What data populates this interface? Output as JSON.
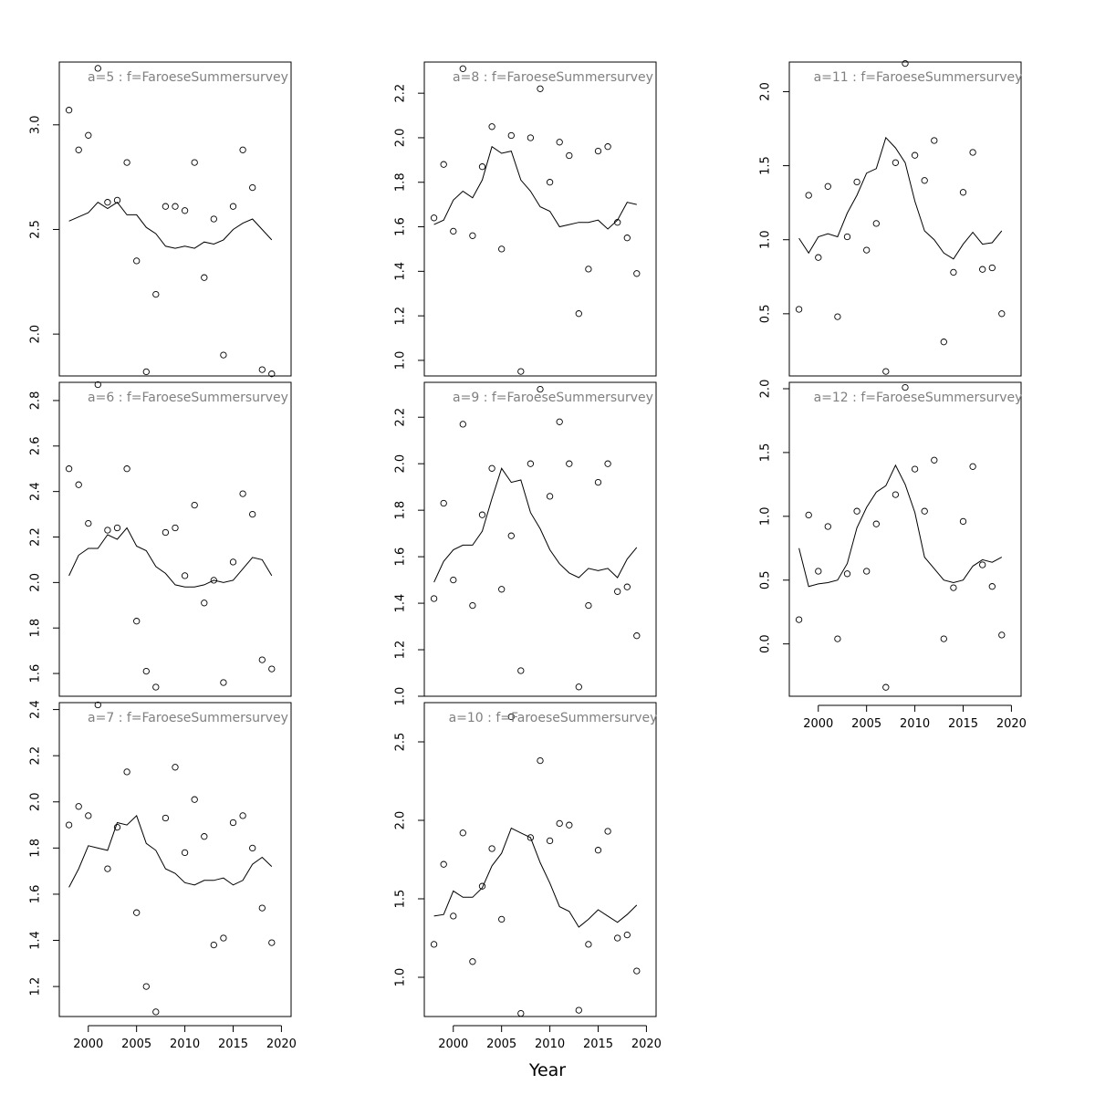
{
  "figure": {
    "xlabel": "Year"
  },
  "chart_data": [
    {
      "type": "scatter",
      "title": "a=5  :  f=FaroeseSummersurvey",
      "xlim": [
        1997,
        2021
      ],
      "ylim": [
        1.8,
        3.3
      ],
      "yticks": [
        2.0,
        2.5,
        3.0
      ],
      "ytick_labels": [
        "2.0",
        "2.5",
        "3.0"
      ],
      "show_xaxis": false,
      "x": [
        1998,
        1999,
        2000,
        2001,
        2002,
        2003,
        2004,
        2005,
        2006,
        2007,
        2008,
        2009,
        2010,
        2011,
        2012,
        2013,
        2014,
        2015,
        2016,
        2017,
        2018,
        2019
      ],
      "observed": [
        3.07,
        2.88,
        2.95,
        3.27,
        2.63,
        2.64,
        2.82,
        2.35,
        1.82,
        2.19,
        2.61,
        2.61,
        2.59,
        2.82,
        2.27,
        2.55,
        1.9,
        2.61,
        2.88,
        2.7,
        1.83,
        1.81
      ],
      "fitted": [
        2.54,
        2.56,
        2.58,
        2.63,
        2.6,
        2.63,
        2.57,
        2.57,
        2.51,
        2.48,
        2.42,
        2.41,
        2.42,
        2.41,
        2.44,
        2.43,
        2.45,
        2.5,
        2.53,
        2.55,
        2.5,
        2.45
      ]
    },
    {
      "type": "scatter",
      "title": "a=6  :  f=FaroeseSummersurvey",
      "xlim": [
        1997,
        2021
      ],
      "ylim": [
        1.5,
        2.88
      ],
      "yticks": [
        1.6,
        1.8,
        2.0,
        2.2,
        2.4,
        2.6,
        2.8
      ],
      "ytick_labels": [
        "1.6",
        "1.8",
        "2.0",
        "2.2",
        "2.4",
        "2.6",
        "2.8"
      ],
      "show_xaxis": false,
      "x": [
        1998,
        1999,
        2000,
        2001,
        2002,
        2003,
        2004,
        2005,
        2006,
        2007,
        2008,
        2009,
        2010,
        2011,
        2012,
        2013,
        2014,
        2015,
        2016,
        2017,
        2018,
        2019
      ],
      "observed": [
        2.5,
        2.43,
        2.26,
        2.87,
        2.23,
        2.24,
        2.5,
        1.83,
        1.61,
        1.54,
        2.22,
        2.24,
        2.03,
        2.34,
        1.91,
        2.01,
        1.56,
        2.09,
        2.39,
        2.3,
        1.66,
        1.62
      ],
      "fitted": [
        2.03,
        2.12,
        2.15,
        2.15,
        2.21,
        2.19,
        2.24,
        2.16,
        2.14,
        2.07,
        2.04,
        1.99,
        1.98,
        1.98,
        1.99,
        2.01,
        2.0,
        2.01,
        2.06,
        2.11,
        2.1,
        2.03
      ]
    },
    {
      "type": "scatter",
      "title": "a=7  :  f=FaroeseSummersurvey",
      "xlim": [
        1997,
        2021
      ],
      "ylim": [
        1.07,
        2.43
      ],
      "yticks": [
        1.2,
        1.4,
        1.6,
        1.8,
        2.0,
        2.2,
        2.4
      ],
      "ytick_labels": [
        "1.2",
        "1.4",
        "1.6",
        "1.8",
        "2.0",
        "2.2",
        "2.4"
      ],
      "show_xaxis": true,
      "xticks": [
        2000,
        2005,
        2010,
        2015,
        2020
      ],
      "xtick_labels": [
        "2000",
        "2005",
        "2010",
        "2015",
        "2020"
      ],
      "x": [
        1998,
        1999,
        2000,
        2001,
        2002,
        2003,
        2004,
        2005,
        2006,
        2007,
        2008,
        2009,
        2010,
        2011,
        2012,
        2013,
        2014,
        2015,
        2016,
        2017,
        2018,
        2019
      ],
      "observed": [
        1.9,
        1.98,
        1.94,
        2.42,
        1.71,
        1.89,
        2.13,
        1.52,
        1.2,
        1.09,
        1.93,
        2.15,
        1.78,
        2.01,
        1.85,
        1.38,
        1.41,
        1.91,
        1.94,
        1.8,
        1.54,
        1.39
      ],
      "fitted": [
        1.63,
        1.71,
        1.81,
        1.8,
        1.79,
        1.91,
        1.9,
        1.94,
        1.82,
        1.79,
        1.71,
        1.69,
        1.65,
        1.64,
        1.66,
        1.66,
        1.67,
        1.64,
        1.66,
        1.73,
        1.76,
        1.72
      ]
    },
    {
      "type": "scatter",
      "title": "a=8  :  f=FaroeseSummersurvey",
      "xlim": [
        1997,
        2021
      ],
      "ylim": [
        0.93,
        2.34
      ],
      "yticks": [
        1.0,
        1.2,
        1.4,
        1.6,
        1.8,
        2.0,
        2.2
      ],
      "ytick_labels": [
        "1.0",
        "1.2",
        "1.4",
        "1.6",
        "1.8",
        "2.0",
        "2.2"
      ],
      "show_xaxis": false,
      "x": [
        1998,
        1999,
        2000,
        2001,
        2002,
        2003,
        2004,
        2005,
        2006,
        2007,
        2008,
        2009,
        2010,
        2011,
        2012,
        2013,
        2014,
        2015,
        2016,
        2017,
        2018,
        2019
      ],
      "observed": [
        1.64,
        1.88,
        1.58,
        2.31,
        1.56,
        1.87,
        2.05,
        1.5,
        2.01,
        0.95,
        2.0,
        2.22,
        1.8,
        1.98,
        1.92,
        1.21,
        1.41,
        1.94,
        1.96,
        1.62,
        1.55,
        1.39
      ],
      "fitted": [
        1.61,
        1.63,
        1.72,
        1.76,
        1.73,
        1.81,
        1.96,
        1.93,
        1.94,
        1.81,
        1.76,
        1.69,
        1.67,
        1.6,
        1.61,
        1.62,
        1.62,
        1.63,
        1.59,
        1.63,
        1.71,
        1.7
      ]
    },
    {
      "type": "scatter",
      "title": "a=9  :  f=FaroeseSummersurvey",
      "xlim": [
        1997,
        2021
      ],
      "ylim": [
        1.0,
        2.35
      ],
      "yticks": [
        1.0,
        1.2,
        1.4,
        1.6,
        1.8,
        2.0,
        2.2
      ],
      "ytick_labels": [
        "1.0",
        "1.2",
        "1.4",
        "1.6",
        "1.8",
        "2.0",
        "2.2"
      ],
      "show_xaxis": false,
      "x": [
        1998,
        1999,
        2000,
        2001,
        2002,
        2003,
        2004,
        2005,
        2006,
        2007,
        2008,
        2009,
        2010,
        2011,
        2012,
        2013,
        2014,
        2015,
        2016,
        2017,
        2018,
        2019
      ],
      "observed": [
        1.42,
        1.83,
        1.5,
        2.17,
        1.39,
        1.78,
        1.98,
        1.46,
        1.69,
        1.11,
        2.0,
        2.32,
        1.86,
        2.18,
        2.0,
        1.04,
        1.39,
        1.92,
        2.0,
        1.45,
        1.47,
        1.26
      ],
      "fitted": [
        1.49,
        1.58,
        1.63,
        1.65,
        1.65,
        1.71,
        1.85,
        1.98,
        1.92,
        1.93,
        1.79,
        1.72,
        1.63,
        1.57,
        1.53,
        1.51,
        1.55,
        1.54,
        1.55,
        1.51,
        1.59,
        1.64
      ]
    },
    {
      "type": "scatter",
      "title": "a=10  :  f=FaroeseSummersurvey",
      "xlim": [
        1997,
        2021
      ],
      "ylim": [
        0.75,
        2.75
      ],
      "yticks": [
        1.0,
        1.5,
        2.0,
        2.5
      ],
      "ytick_labels": [
        "1.0",
        "1.5",
        "2.0",
        "2.5"
      ],
      "show_xaxis": true,
      "xticks": [
        2000,
        2005,
        2010,
        2015,
        2020
      ],
      "xtick_labels": [
        "2000",
        "2005",
        "2010",
        "2015",
        "2020"
      ],
      "x": [
        1998,
        1999,
        2000,
        2001,
        2002,
        2003,
        2004,
        2005,
        2006,
        2007,
        2008,
        2009,
        2010,
        2011,
        2012,
        2013,
        2014,
        2015,
        2016,
        2017,
        2018,
        2019
      ],
      "observed": [
        1.21,
        1.72,
        1.39,
        1.92,
        1.1,
        1.58,
        1.82,
        1.37,
        2.66,
        0.77,
        1.89,
        2.38,
        1.87,
        1.98,
        1.97,
        0.79,
        1.21,
        1.81,
        1.93,
        1.25,
        1.27,
        1.04
      ],
      "fitted": [
        1.39,
        1.4,
        1.55,
        1.51,
        1.51,
        1.57,
        1.71,
        1.79,
        1.95,
        1.92,
        1.89,
        1.73,
        1.6,
        1.45,
        1.42,
        1.32,
        1.37,
        1.43,
        1.39,
        1.35,
        1.4,
        1.46
      ]
    },
    {
      "type": "scatter",
      "title": "a=11  :  f=FaroeseSummersurvey",
      "xlim": [
        1997,
        2021
      ],
      "ylim": [
        0.08,
        2.2
      ],
      "yticks": [
        0.5,
        1.0,
        1.5,
        2.0
      ],
      "ytick_labels": [
        "0.5",
        "1.0",
        "1.5",
        "2.0"
      ],
      "show_xaxis": false,
      "x": [
        1998,
        1999,
        2000,
        2001,
        2002,
        2003,
        2004,
        2005,
        2006,
        2007,
        2008,
        2009,
        2010,
        2011,
        2012,
        2013,
        2014,
        2015,
        2016,
        2017,
        2018,
        2019
      ],
      "observed": [
        0.53,
        1.3,
        0.88,
        1.36,
        0.48,
        1.02,
        1.39,
        0.93,
        1.11,
        0.11,
        1.52,
        2.19,
        1.57,
        1.4,
        1.67,
        0.31,
        0.78,
        1.32,
        1.59,
        0.8,
        0.81,
        0.5
      ],
      "fitted": [
        1.01,
        0.91,
        1.02,
        1.04,
        1.02,
        1.18,
        1.3,
        1.45,
        1.48,
        1.69,
        1.62,
        1.52,
        1.26,
        1.06,
        1.0,
        0.91,
        0.87,
        0.97,
        1.05,
        0.97,
        0.98,
        1.06
      ]
    },
    {
      "type": "scatter",
      "title": "a=12  :  f=FaroeseSummersurvey",
      "xlim": [
        1997,
        2021
      ],
      "ylim": [
        -0.41,
        2.05
      ],
      "yticks": [
        0.0,
        0.5,
        1.0,
        1.5,
        2.0
      ],
      "ytick_labels": [
        "0.0",
        "0.5",
        "1.0",
        "1.5",
        "2.0"
      ],
      "show_xaxis": true,
      "xticks": [
        2000,
        2005,
        2010,
        2015,
        2020
      ],
      "xtick_labels": [
        "2000",
        "2005",
        "2010",
        "2015",
        "2020"
      ],
      "x": [
        1998,
        1999,
        2000,
        2001,
        2002,
        2003,
        2004,
        2005,
        2006,
        2007,
        2008,
        2009,
        2010,
        2011,
        2012,
        2013,
        2014,
        2015,
        2016,
        2017,
        2018,
        2019
      ],
      "observed": [
        0.19,
        1.01,
        0.57,
        0.92,
        0.04,
        0.55,
        1.04,
        0.57,
        0.94,
        -0.34,
        1.17,
        2.01,
        1.37,
        1.04,
        1.44,
        0.04,
        0.44,
        0.96,
        1.39,
        0.62,
        0.45,
        0.07
      ],
      "fitted": [
        0.75,
        0.45,
        0.47,
        0.48,
        0.5,
        0.63,
        0.91,
        1.07,
        1.19,
        1.24,
        1.4,
        1.25,
        1.03,
        0.68,
        0.59,
        0.5,
        0.48,
        0.5,
        0.61,
        0.66,
        0.64,
        0.68
      ]
    }
  ]
}
